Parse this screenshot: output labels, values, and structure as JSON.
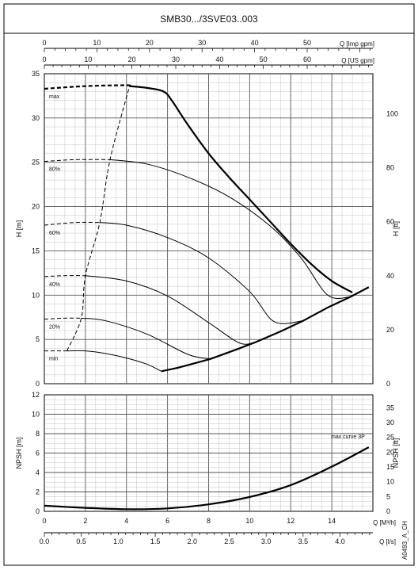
{
  "chart_data": {
    "type": "line",
    "title": "SMB30.../3SVE03..003",
    "code": "A0493_A_CH",
    "head_chart": {
      "ylabel_left": "H [m]",
      "ylabel_right": "H [ft]",
      "ylim": [
        0,
        35
      ],
      "yticks": [
        "0",
        "5",
        "10",
        "15",
        "20",
        "25",
        "30",
        "35"
      ],
      "ylim_ft": [
        0,
        114.83
      ],
      "yticks_ft": [
        "0",
        "20",
        "40",
        "60",
        "80",
        "100"
      ],
      "top_axis_imp": {
        "label": "Q [Imp gpm]",
        "lim": [
          0,
          62.5
        ],
        "ticks": [
          "0",
          "10",
          "20",
          "30",
          "40",
          "50"
        ]
      },
      "top_axis_us": {
        "label": "Q [US gpm]",
        "lim": [
          0,
          75
        ],
        "ticks": [
          "0",
          "10",
          "20",
          "30",
          "40",
          "50",
          "60"
        ]
      },
      "series": [
        {
          "name": "max",
          "dashed": [
            [
              0,
              33.3
            ],
            [
              2,
              33.6
            ],
            [
              4,
              33.7
            ],
            [
              4.15,
              33.6
            ]
          ],
          "solid": [
            [
              4.15,
              33.6
            ],
            [
              5,
              33.4
            ],
            [
              5.8,
              33.0
            ],
            [
              6.2,
              32.0
            ],
            [
              7,
              29.2
            ],
            [
              8,
              26.0
            ],
            [
              9,
              23.3
            ],
            [
              10,
              20.8
            ],
            [
              11,
              18.3
            ],
            [
              12,
              15.8
            ],
            [
              13,
              13.5
            ],
            [
              14,
              11.6
            ],
            [
              15.0,
              10.3
            ]
          ]
        },
        {
          "name": "80%",
          "dashed": [
            [
              0,
              25.1
            ],
            [
              1.5,
              25.3
            ],
            [
              3.2,
              25.3
            ]
          ],
          "solid": [
            [
              3.2,
              25.3
            ],
            [
              5,
              24.8
            ],
            [
              7,
              23.3
            ],
            [
              9,
              21.1
            ],
            [
              11,
              17.8
            ],
            [
              12.5,
              14.2
            ],
            [
              13.8,
              10.0
            ],
            [
              14.9,
              9.8
            ]
          ]
        },
        {
          "name": "60%",
          "dashed": [
            [
              0,
              17.9
            ],
            [
              1.5,
              18.2
            ],
            [
              2.7,
              18.2
            ]
          ],
          "solid": [
            [
              2.7,
              18.2
            ],
            [
              4,
              17.9
            ],
            [
              6,
              16.5
            ],
            [
              8,
              14.2
            ],
            [
              10,
              10.4
            ],
            [
              11.2,
              7.0
            ],
            [
              12.6,
              7.1
            ]
          ]
        },
        {
          "name": "40%",
          "dashed": [
            [
              0,
              12.1
            ],
            [
              1.0,
              12.2
            ],
            [
              2.0,
              12.2
            ]
          ],
          "solid": [
            [
              2.0,
              12.2
            ],
            [
              4,
              11.6
            ],
            [
              6,
              9.9
            ],
            [
              8,
              6.9
            ],
            [
              9.5,
              4.6
            ],
            [
              10.3,
              4.7
            ]
          ]
        },
        {
          "name": "20%",
          "dashed": [
            [
              0,
              7.3
            ],
            [
              1.0,
              7.4
            ],
            [
              1.8,
              7.4
            ]
          ],
          "solid": [
            [
              1.8,
              7.4
            ],
            [
              3,
              7.1
            ],
            [
              5,
              5.6
            ],
            [
              7,
              3.3
            ],
            [
              8.1,
              2.8
            ]
          ]
        },
        {
          "name": "min",
          "dashed": [
            [
              0,
              3.7
            ],
            [
              1.0,
              3.7
            ]
          ],
          "solid": [
            [
              1.0,
              3.7
            ],
            [
              2,
              3.7
            ],
            [
              3,
              3.4
            ],
            [
              4,
              2.9
            ],
            [
              5,
              2.2
            ],
            [
              5.7,
              1.4
            ]
          ]
        }
      ],
      "max_flow_limit": [
        [
          5.7,
          1.4
        ],
        [
          6.5,
          1.8
        ],
        [
          8.1,
          2.8
        ],
        [
          9.4,
          3.9
        ],
        [
          10.3,
          4.7
        ],
        [
          11.5,
          5.9
        ],
        [
          12.6,
          7.1
        ],
        [
          13.8,
          8.6
        ],
        [
          14.9,
          9.8
        ],
        [
          15.8,
          10.9
        ]
      ],
      "min_flow_limit": [
        [
          1.1,
          3.7
        ],
        [
          1.8,
          7.4
        ],
        [
          2.0,
          12.2
        ],
        [
          2.7,
          18.2
        ],
        [
          3.2,
          25.3
        ],
        [
          4.15,
          33.6
        ]
      ]
    },
    "npsh_chart": {
      "ylabel_left": "NPSH [m]",
      "ylabel_right": "NPSH [ft]",
      "ylim": [
        0,
        12
      ],
      "yticks": [
        "0",
        "2",
        "4",
        "6",
        "8",
        "10",
        "12"
      ],
      "ylim_ft": [
        0,
        39.37
      ],
      "yticks_ft": [
        "0",
        "5",
        "10",
        "15",
        "20",
        "25",
        "30",
        "35"
      ],
      "series_name": "max curve 3P",
      "curve": [
        [
          0,
          0.58
        ],
        [
          2,
          0.36
        ],
        [
          4,
          0.22
        ],
        [
          6,
          0.3
        ],
        [
          8,
          0.72
        ],
        [
          10,
          1.48
        ],
        [
          12,
          2.7
        ],
        [
          14,
          4.6
        ],
        [
          15.8,
          6.6
        ]
      ]
    },
    "bottom_axis_m3h": {
      "label": "Q [M³/h]",
      "lim": [
        0,
        16
      ],
      "ticks": [
        "0",
        "2",
        "4",
        "6",
        "8",
        "10",
        "12",
        "14"
      ]
    },
    "bottom_axis_ls": {
      "label": "Q [l/s]",
      "lim": [
        0,
        4.444
      ],
      "ticks": [
        "0.0",
        "0.5",
        "1.0",
        "1.5",
        "2.0",
        "2.5",
        "3.0",
        "3.5",
        "4.0"
      ]
    }
  }
}
